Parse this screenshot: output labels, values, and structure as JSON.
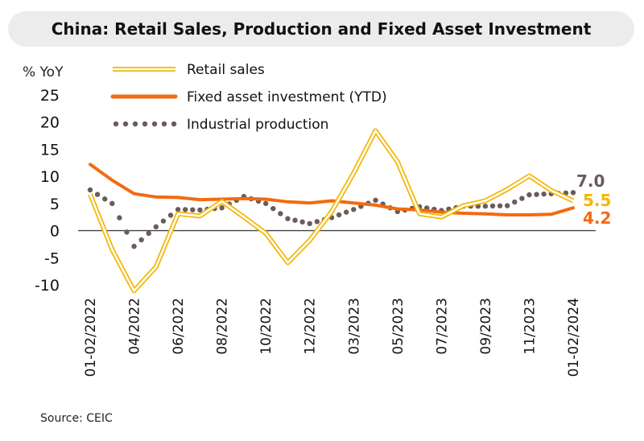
{
  "title": "China: Retail Sales, Production and Fixed Asset Investment",
  "source": "Source: CEIC",
  "colors": {
    "retail_fill": "#fde38a",
    "retail_stroke": "#f2b705",
    "fai": "#f36a10",
    "industrial": "#6b5b5b",
    "axis": "#444444"
  },
  "chart_data": {
    "type": "line",
    "ylabel": "% YoY",
    "ylim": [
      -10,
      25
    ],
    "yticks": [
      25,
      20,
      15,
      10,
      5,
      0,
      -5,
      -10
    ],
    "x": [
      "01-02/2022",
      "03/2022",
      "04/2022",
      "05/2022",
      "06/2022",
      "07/2022",
      "08/2022",
      "09/2022",
      "10/2022",
      "11/2022",
      "12/2022",
      "01-02/2023",
      "03/2023",
      "04/2023",
      "05/2023",
      "06/2023",
      "07/2023",
      "08/2023",
      "09/2023",
      "10/2023",
      "11/2023",
      "12/2023",
      "01-02/2024"
    ],
    "xtick_labels": [
      "01-02/2022",
      "04/2022",
      "06/2022",
      "08/2022",
      "10/2022",
      "12/2022",
      "03/2023",
      "05/2023",
      "07/2023",
      "09/2023",
      "11/2023",
      "01-02/2024"
    ],
    "legend_position": "top",
    "series": [
      {
        "name": "Retail sales",
        "style": "double-line",
        "values": [
          6.7,
          -3.5,
          -11.1,
          -6.7,
          3.1,
          2.7,
          5.4,
          2.5,
          -0.5,
          -5.9,
          -1.8,
          3.5,
          10.6,
          18.4,
          12.7,
          3.1,
          2.5,
          4.6,
          5.5,
          7.6,
          10.1,
          7.4,
          5.5
        ]
      },
      {
        "name": "Fixed asset investment (YTD)",
        "style": "thick-line",
        "values": [
          12.2,
          9.3,
          6.8,
          6.2,
          6.1,
          5.7,
          5.8,
          5.9,
          5.8,
          5.3,
          5.1,
          5.5,
          5.1,
          4.7,
          4.0,
          3.8,
          3.4,
          3.2,
          3.1,
          2.9,
          2.9,
          3.0,
          4.2
        ]
      },
      {
        "name": "Industrial production",
        "style": "dotted",
        "values": [
          7.5,
          5.0,
          -2.9,
          0.7,
          3.9,
          3.8,
          4.2,
          6.3,
          5.0,
          2.2,
          1.3,
          2.4,
          3.9,
          5.6,
          3.5,
          4.4,
          3.7,
          4.5,
          4.5,
          4.6,
          6.6,
          6.8,
          7.0
        ]
      }
    ],
    "end_labels": [
      {
        "series": "Industrial production",
        "text": "7.0"
      },
      {
        "series": "Retail sales",
        "text": "5.5"
      },
      {
        "series": "Fixed asset investment (YTD)",
        "text": "4.2"
      }
    ]
  }
}
